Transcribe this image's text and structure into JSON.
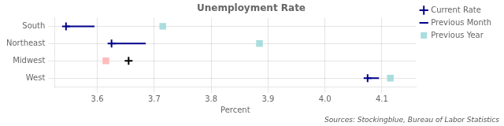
{
  "chart_data": {
    "type": "scatter",
    "orientation": "horizontal",
    "title": "Unemployment Rate",
    "xlabel": "Percent",
    "annotations": [
      "Sources: Stockingblue, Bureau of Labor Statistics"
    ],
    "categories": [
      "South",
      "Northeast",
      "Midwest",
      "West"
    ],
    "series": [
      {
        "name": "Current Rate",
        "type": "scatter",
        "marker": "plus",
        "values": [
          3.545,
          3.625,
          3.655,
          4.075
        ],
        "colors": [
          "#00008B",
          "#00008B",
          "#000000",
          "#00008B"
        ]
      },
      {
        "name": "Previous Month",
        "type": "segment",
        "line_style": "solid",
        "values": [
          3.595,
          3.685,
          null,
          4.095
        ],
        "color": "#00008B"
      },
      {
        "name": "Previous Year",
        "type": "scatter",
        "marker": "square",
        "values": [
          3.715,
          3.885,
          3.615,
          4.115
        ],
        "colors": [
          "#AADDDD",
          "#AADDDD",
          "#FFBBBB",
          "#AADDDD"
        ]
      }
    ],
    "xlim": [
      3.525,
      4.16
    ],
    "xticks": [
      3.6,
      3.7,
      3.8,
      3.9,
      {
        "value": 4.0,
        "label": "4.0"
      },
      4.1
    ],
    "grid": true,
    "legend": "upper right"
  }
}
